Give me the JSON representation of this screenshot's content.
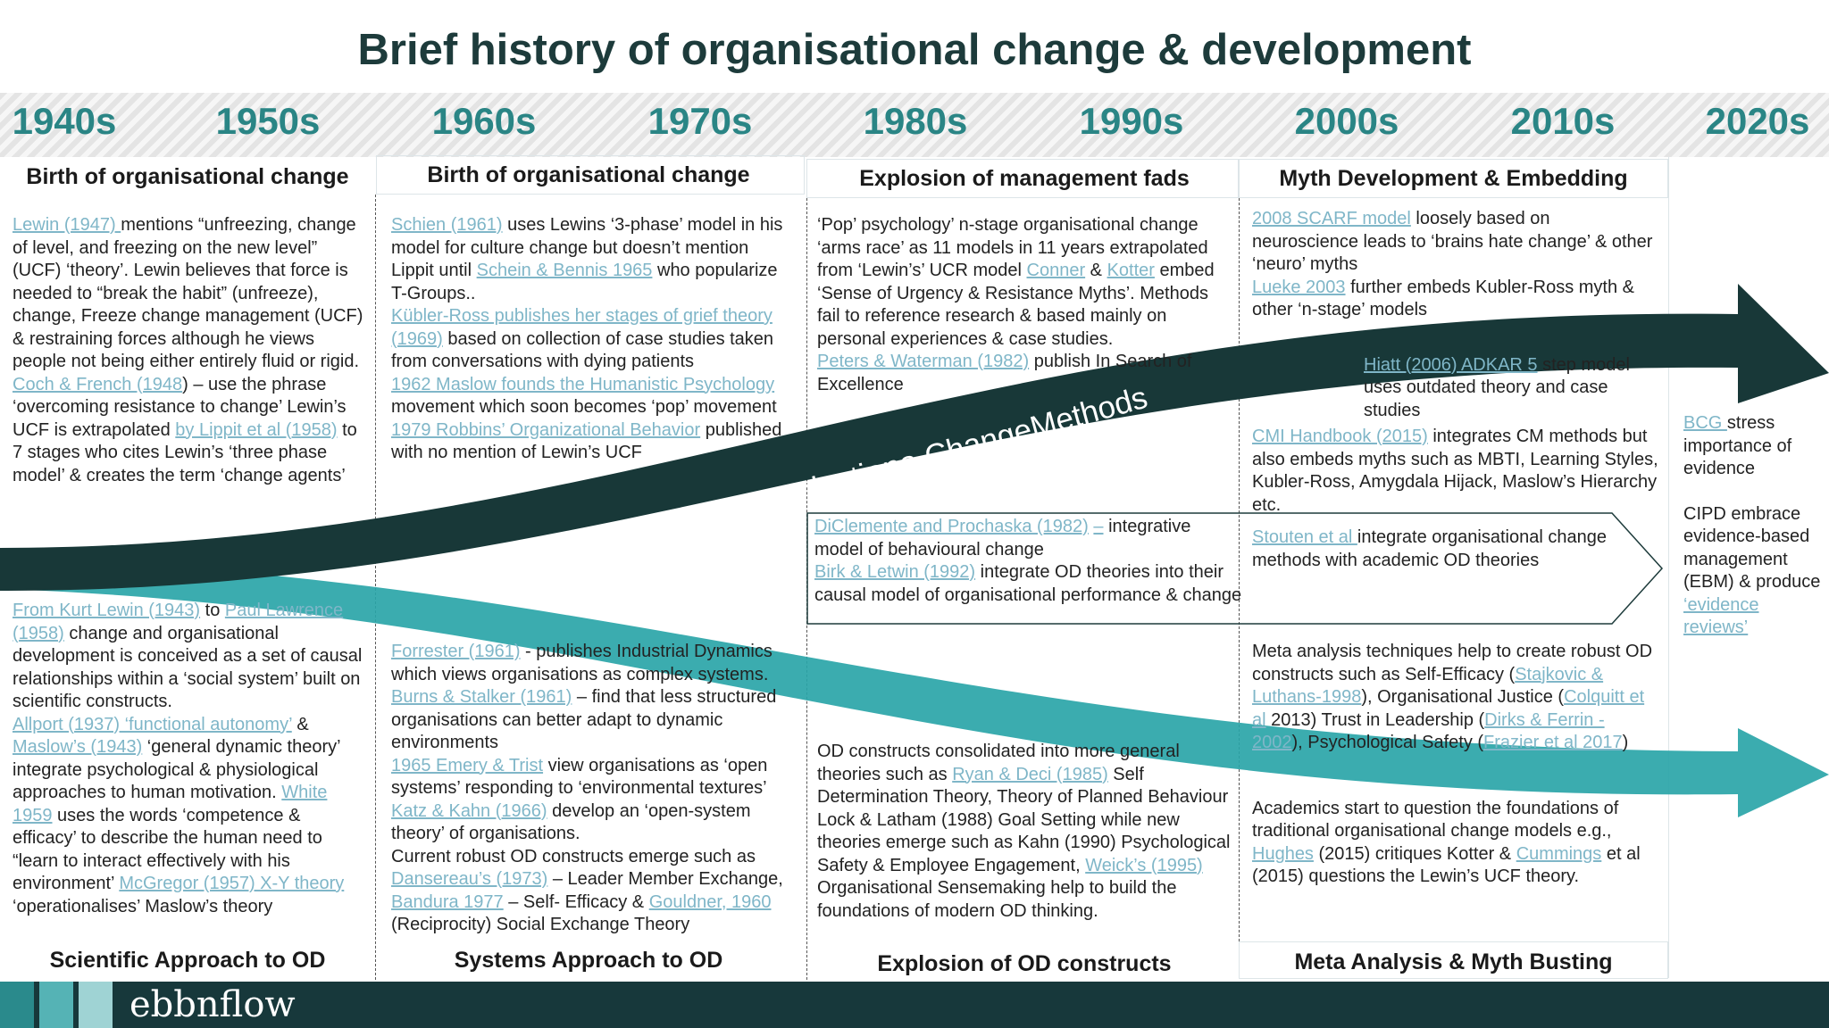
{
  "title": "Brief history of organisational change & development",
  "decades": [
    "1940s",
    "1950s",
    "1960s",
    "1970s",
    "1980s",
    "1990s",
    "2000s",
    "2010s",
    "2020s"
  ],
  "columns": [
    {
      "top_heading": "Birth of organisational change",
      "top_text": [
        [
          {
            "link": "Lewin (1947) "
          },
          "mentions “unfreezing, change of level, and freezing on the new level” (UCF) ‘theory’.  Lewin believes that force is needed to “break the habit” (unfreeze), change, Freeze change management (UCF) & restraining forces although he views people not being either entirely fluid or rigid."
        ],
        [
          {
            "link": "Coch & French (1948"
          },
          ") – use the phrase ‘overcoming resistance to change’ Lewin’s UCF is extrapolated ",
          {
            "link": "by Lippit et al (1958)"
          },
          " to 7 stages who cites Lewin’s ‘three phase model’ & creates  the term ‘change agents’"
        ]
      ],
      "bottom_text": [
        [
          {
            "link": "From Kurt Lewin (1943)"
          },
          " to ",
          {
            "link": "Paul Lawrence (1958)"
          },
          " change and organisational development is conceived as a set of causal relationships within a  ‘social system’ built on scientific constructs."
        ],
        [
          {
            "link": "Allport (1937) ‘functional autonomy’"
          },
          " & ",
          {
            "link": "Maslow’s (1943)"
          },
          " ‘general dynamic theory’ integrate psychological & physiological approaches to human motivation. ",
          {
            "link": "White 1959"
          },
          " uses the words ‘competence & efficacy’ to describe the human need to “learn to interact effectively with his environment’ ",
          {
            "link": "McGregor (1957) X-Y theory"
          },
          " ‘operationalises’ Maslow’s theory"
        ]
      ],
      "bottom_heading": "Scientific Approach to OD"
    },
    {
      "top_heading": "Birth of organisational change",
      "top_text": [
        [
          {
            "link": "Schien (1961)"
          },
          " uses Lewins ‘3-phase’ model in his model for culture change but doesn’t mention Lippit until ",
          {
            "link": "Schein & Bennis 1965"
          },
          " who popularize T-Groups.."
        ],
        [
          {
            "link": "Kübler-Ross publishes her stages of grief theory (1969)"
          },
          " based on collection of case studies taken from conversations with dying patients"
        ],
        [
          {
            "link": "1962 Maslow founds the Humanistic Psychology"
          },
          " movement which soon becomes ‘pop’ movement"
        ],
        [
          {
            "link": "1979 Robbins’ Organizational Behavior"
          },
          " published with no mention of Lewin’s UCF"
        ]
      ],
      "bottom_text": [
        [
          {
            "link": "Forrester (1961)"
          },
          " - publishes Industrial Dynamics which views organisations as complex systems."
        ],
        [
          {
            "link": "Burns & Stalker (1961)"
          },
          " – find that less structured organisations can better adapt to dynamic environments"
        ],
        [
          {
            "link": "1965 Emery & Trist"
          },
          " view organisations as ‘open systems’ responding to ‘environmental textures’"
        ],
        [
          {
            "link": "Katz & Kahn (1966)"
          },
          " develop an ‘open-system theory’ of organisations."
        ],
        [
          "Current robust OD constructs emerge such as ",
          {
            "link": "Dansereau’s (1973)"
          },
          " – Leader Member Exchange, ",
          {
            "link": "Bandura 1977"
          },
          " – Self- Efficacy & ",
          {
            "link": "Gouldner, 1960"
          },
          " (Reciprocity) Social Exchange Theory"
        ]
      ],
      "bottom_heading": "Systems Approach to OD"
    },
    {
      "top_heading": "Explosion of management fads",
      "top_text": [
        [
          "‘Pop’ psychology’ n-stage organisational change ‘arms race’ as 11 models in 11 years extrapolated from ‘Lewin’s’ UCR model ",
          {
            "link": "Conner"
          },
          " & ",
          {
            "link": "Kotter"
          },
          " embed ‘Sense of Urgency & Resistance Myths’.  Methods fail to reference research & based mainly on personal experiences & case studies."
        ],
        [
          {
            "link": "Peters & Waterman (1982)"
          },
          " publish In Search of Excellence"
        ]
      ],
      "band_text": [
        [
          {
            "link": "DiClemente and Prochaska (1982)"
          },
          " ",
          {
            "link": "–"
          },
          " integrative model of behavioural change"
        ],
        [
          {
            "link": "Birk & Letwin (1992)"
          },
          " integrate OD theories into their causal model of organisational performance & change"
        ]
      ],
      "bottom_text": [
        [
          "OD constructs consolidated into more general theories such as ",
          {
            "link": "Ryan & Deci (1985)"
          },
          " Self Determination Theory, Theory of Planned Behaviour Lock & Latham (1988) Goal Setting while new theories emerge such as Kahn (1990) Psychological Safety & Employee Engagement, ",
          {
            "link": "Weick’s (1995)"
          },
          " Organisational Sensemaking help to build the foundations of modern OD thinking."
        ]
      ],
      "bottom_heading": "Explosion of OD constructs"
    },
    {
      "top_heading": "Myth Development & Embedding",
      "top_text": [
        [
          {
            "link": "2008 SCARF model"
          },
          " loosely based on neuroscience leads to ‘brains hate change’ & other ‘neuro’ myths"
        ],
        [
          {
            "link": "Lueke 2003"
          },
          " further embeds Kubler-Ross myth & other ‘n-stage’ models"
        ],
        [
          {
            "link": "Hiatt (2006) ADKAR 5"
          },
          " step model uses outdated theory and case studies"
        ],
        [
          {
            "link": "CMI Handbook (2015)"
          },
          " integrates CM methods but also embeds myths such as MBTI, Learning Styles, Kubler-Ross, Amygdala Hijack, Maslow’s Hierarchy  etc."
        ]
      ],
      "band_text": [
        [
          {
            "link": "Stouten et al "
          },
          "integrate organisational change methods with academic OD theories"
        ]
      ],
      "bottom_text": [
        [
          "Meta analysis techniques help to create robust OD constructs such as Self-Efficacy (",
          {
            "link": "Stajkovic & Luthans-1998"
          },
          "), Organisational Justice (",
          {
            "link": "Colquitt et al"
          },
          " 2013) Trust in Leadership (",
          {
            "link": "Dirks & Ferrin - 2002"
          },
          "),        Psychological Safety (",
          {
            "link": "Frazier et al 2017"
          },
          ")"
        ],
        [
          "Academics start to question the foundations of traditional organisational change models e.g., ",
          {
            "link": "Hughes"
          },
          "  (2015) critiques Kotter & ",
          {
            "link": "Cummings"
          },
          " et al (2015) questions the Lewin’s UCF theory."
        ]
      ],
      "bottom_heading": "Meta Analysis & Myth Busting"
    },
    {
      "top_text": [
        [
          {
            "link": "BCG "
          },
          "stress importance of evidence"
        ],
        [
          "CIPD embrace evidence-based management (EBM) & produce ",
          {
            "link": "‘evidence reviews’"
          }
        ]
      ]
    }
  ],
  "arrow_label": "Organisationa ChangeMethods",
  "logo": "ebbnflow"
}
